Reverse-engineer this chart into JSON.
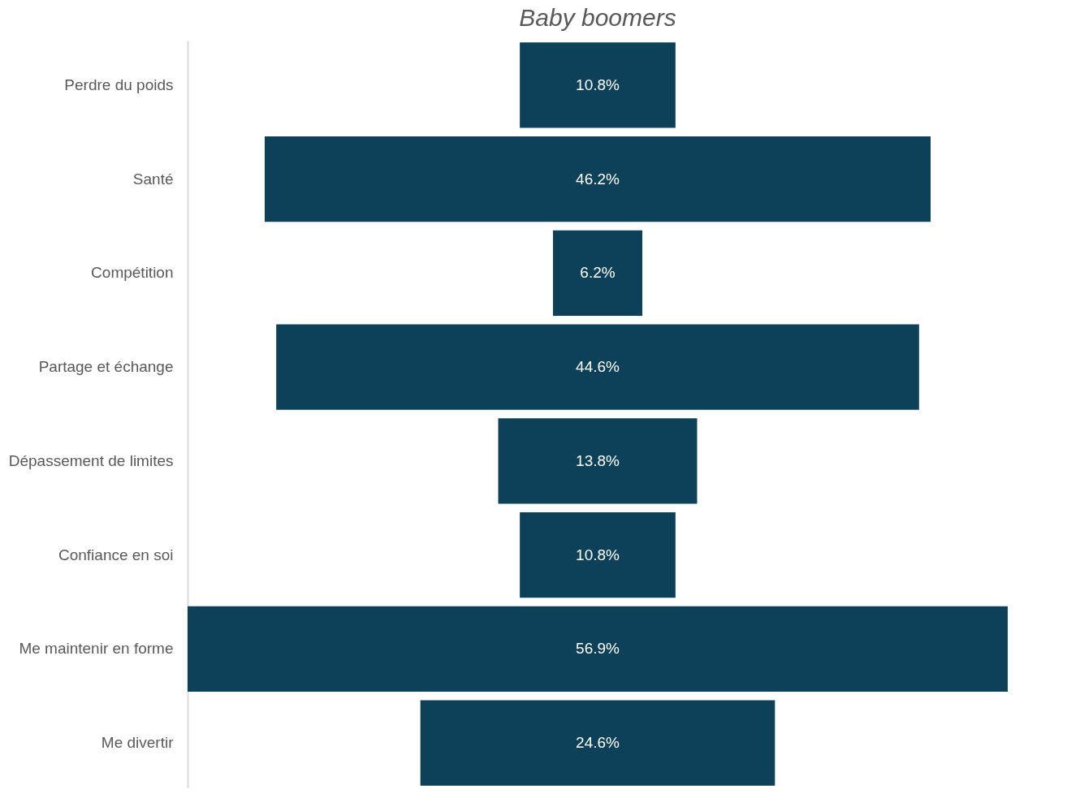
{
  "chart_data": {
    "type": "other",
    "title": "Baby boomers",
    "categories": [
      "Perdre du poids",
      "Santé",
      "Compétition",
      "Partage et échange",
      "Dépassement de limites",
      "Confiance en soi",
      "Me maintenir en forme",
      "Me divertir"
    ],
    "values": [
      10.8,
      46.2,
      6.2,
      44.6,
      13.8,
      10.8,
      56.9,
      24.6
    ],
    "value_labels": [
      "10.8%",
      "46.2%",
      "6.2%",
      "44.6%",
      "13.8%",
      "10.8%",
      "56.9%",
      "24.6%"
    ],
    "color": "#0d4059"
  }
}
